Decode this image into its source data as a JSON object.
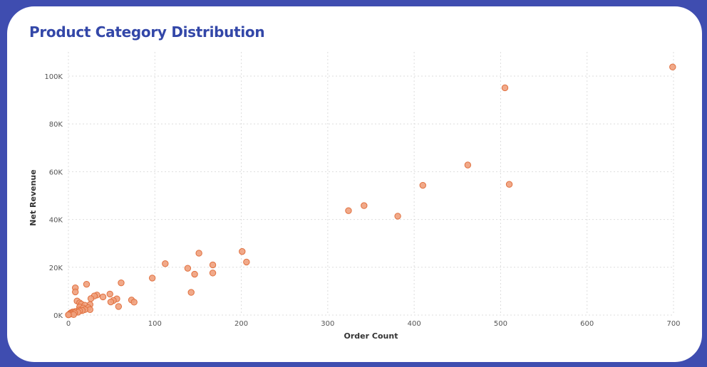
{
  "colors": {
    "background": "#3f4db0",
    "card": "#ffffff",
    "title": "#3347a8",
    "point_fill": "#f0a07c",
    "point_stroke": "#e0703f",
    "grid": "#dddddd"
  },
  "chart_data": {
    "type": "scatter",
    "title": "Product Category Distribution",
    "xlabel": "Order Count",
    "ylabel": "Net Revenue",
    "xlim": [
      0,
      700
    ],
    "ylim": [
      0,
      110000
    ],
    "x_ticks": [
      0,
      100,
      200,
      300,
      400,
      500,
      600,
      700
    ],
    "x_tick_labels": [
      "0",
      "100",
      "200",
      "300",
      "400",
      "500",
      "600",
      "700"
    ],
    "y_ticks": [
      0,
      20000,
      40000,
      60000,
      80000,
      100000
    ],
    "y_tick_labels": [
      "0K",
      "20K",
      "40K",
      "60K",
      "80K",
      "100K"
    ],
    "grid": true,
    "legend": "none",
    "points": [
      {
        "x": 699,
        "y": 103800
      },
      {
        "x": 505,
        "y": 95100
      },
      {
        "x": 462,
        "y": 62800
      },
      {
        "x": 410,
        "y": 54300
      },
      {
        "x": 510,
        "y": 54700
      },
      {
        "x": 342,
        "y": 45800
      },
      {
        "x": 324,
        "y": 43700
      },
      {
        "x": 381,
        "y": 41400
      },
      {
        "x": 201,
        "y": 26600
      },
      {
        "x": 151,
        "y": 25900
      },
      {
        "x": 206,
        "y": 22200
      },
      {
        "x": 112,
        "y": 21500
      },
      {
        "x": 167,
        "y": 21000
      },
      {
        "x": 138,
        "y": 19600
      },
      {
        "x": 167,
        "y": 17600
      },
      {
        "x": 146,
        "y": 17100
      },
      {
        "x": 97,
        "y": 15500
      },
      {
        "x": 61,
        "y": 13500
      },
      {
        "x": 21,
        "y": 12900
      },
      {
        "x": 8,
        "y": 11400
      },
      {
        "x": 8,
        "y": 9700
      },
      {
        "x": 142,
        "y": 9500
      },
      {
        "x": 48,
        "y": 8800
      },
      {
        "x": 33,
        "y": 8400
      },
      {
        "x": 30,
        "y": 8000
      },
      {
        "x": 40,
        "y": 7600
      },
      {
        "x": 26,
        "y": 6900
      },
      {
        "x": 56,
        "y": 6800
      },
      {
        "x": 73,
        "y": 6300
      },
      {
        "x": 52,
        "y": 6100
      },
      {
        "x": 10,
        "y": 5900
      },
      {
        "x": 49,
        "y": 5500
      },
      {
        "x": 76,
        "y": 5400
      },
      {
        "x": 13,
        "y": 5100
      },
      {
        "x": 15,
        "y": 4600
      },
      {
        "x": 25,
        "y": 4400
      },
      {
        "x": 19,
        "y": 4100
      },
      {
        "x": 58,
        "y": 3600
      },
      {
        "x": 13,
        "y": 3400
      },
      {
        "x": 23,
        "y": 3100
      },
      {
        "x": 17,
        "y": 2900
      },
      {
        "x": 25,
        "y": 2300
      },
      {
        "x": 19,
        "y": 2300
      },
      {
        "x": 12,
        "y": 2100
      },
      {
        "x": 16,
        "y": 1900
      },
      {
        "x": 13,
        "y": 1700
      },
      {
        "x": 8,
        "y": 1500
      },
      {
        "x": 5,
        "y": 1300
      },
      {
        "x": 11,
        "y": 1200
      },
      {
        "x": 3,
        "y": 1000
      },
      {
        "x": 7,
        "y": 900
      },
      {
        "x": 2,
        "y": 700
      },
      {
        "x": 4,
        "y": 500
      },
      {
        "x": 1,
        "y": 300
      },
      {
        "x": 6,
        "y": 200
      },
      {
        "x": 0,
        "y": 100
      }
    ]
  }
}
